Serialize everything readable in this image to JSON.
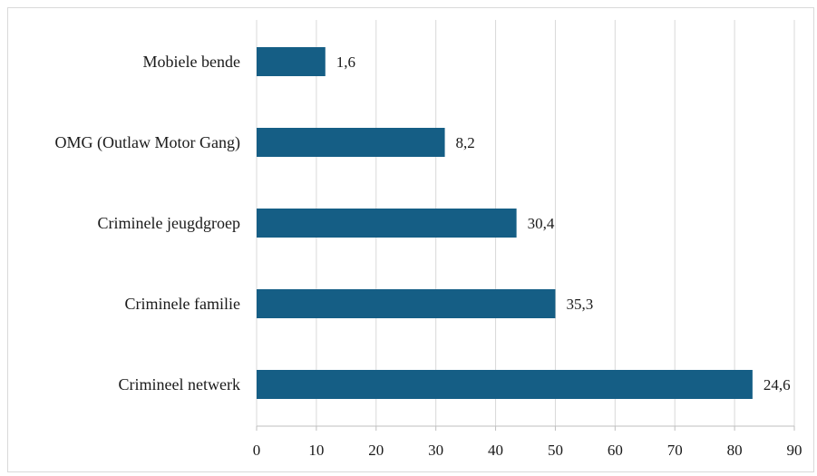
{
  "chart_data": {
    "type": "bar",
    "orientation": "horizontal",
    "categories": [
      "Mobiele bende",
      "OMG (Outlaw Motor Gang)",
      "Criminele jeugdgroep",
      "Criminele familie",
      "Crimineel netwerk"
    ],
    "values": [
      11.5,
      31.5,
      43.5,
      50,
      83
    ],
    "data_labels": [
      "1,6",
      "8,2",
      "30,4",
      "35,3",
      "24,6"
    ],
    "xlim": [
      0,
      90
    ],
    "xticks": [
      0,
      10,
      20,
      30,
      40,
      50,
      60,
      70,
      80,
      90
    ],
    "title": "",
    "xlabel": "",
    "ylabel": "",
    "grid": "vertical",
    "legend": "none",
    "bar_color": "#155e85",
    "grid_color": "#d9d9d9"
  }
}
